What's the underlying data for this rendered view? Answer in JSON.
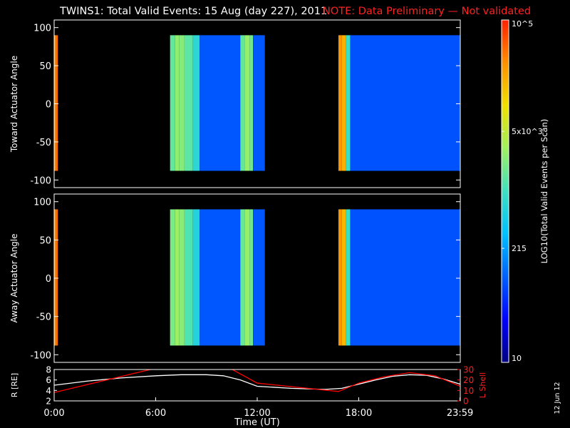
{
  "header": {
    "title": "TWINS1: Total Valid Events: 15 Aug (day 227), 2011",
    "note": "NOTE: Data Preliminary — Not validated"
  },
  "colorbar": {
    "label": "LOG10(Total Valid Events per Scan)",
    "tick_labels": [
      "10",
      "215",
      "5x10^3",
      "10^5"
    ],
    "tick_values": [
      10,
      215,
      5000,
      100000
    ],
    "scale": "log",
    "range": [
      10,
      100000
    ],
    "colormap": [
      "#000080",
      "#0000ff",
      "#0060ff",
      "#00c0ff",
      "#40e0c0",
      "#a0f060",
      "#f0e000",
      "#ff9000",
      "#ff2000"
    ]
  },
  "side_stamp": "12 Jun 12",
  "chart_data": [
    {
      "type": "heatmap",
      "name": "toward",
      "ylabel": "Toward Actuator Angle",
      "ylim": [
        -110,
        110
      ],
      "yticks": [
        100,
        50,
        0,
        -50,
        -100
      ],
      "xlim": [
        0,
        24
      ],
      "angle_range": [
        -88,
        90
      ],
      "segments": [
        {
          "start": 0.0,
          "end": 0.1,
          "value": 30000
        },
        {
          "start": 0.1,
          "end": 0.22,
          "value": 45000
        },
        {
          "start": 6.85,
          "end": 7.15,
          "value": 1500
        },
        {
          "start": 7.15,
          "end": 7.4,
          "value": 2600
        },
        {
          "start": 7.4,
          "end": 7.7,
          "value": 2300
        },
        {
          "start": 7.7,
          "end": 8.2,
          "value": 1400
        },
        {
          "start": 8.2,
          "end": 8.6,
          "value": 700
        },
        {
          "start": 8.6,
          "end": 11.0,
          "value": 90
        },
        {
          "start": 11.0,
          "end": 11.25,
          "value": 1500
        },
        {
          "start": 11.25,
          "end": 11.55,
          "value": 2800
        },
        {
          "start": 11.55,
          "end": 11.75,
          "value": 1800
        },
        {
          "start": 11.75,
          "end": 12.45,
          "value": 90
        },
        {
          "start": 16.8,
          "end": 17.0,
          "value": 30000
        },
        {
          "start": 17.0,
          "end": 17.25,
          "value": 20000
        },
        {
          "start": 17.25,
          "end": 17.5,
          "value": 900
        },
        {
          "start": 17.5,
          "end": 24.0,
          "value": 85
        }
      ]
    },
    {
      "type": "heatmap",
      "name": "away",
      "ylabel": "Away Actuator Angle",
      "ylim": [
        -110,
        110
      ],
      "yticks": [
        100,
        50,
        0,
        -50,
        -100
      ],
      "xlim": [
        0,
        24
      ],
      "angle_range": [
        -88,
        90
      ],
      "segments": [
        {
          "start": 0.0,
          "end": 0.1,
          "value": 30000
        },
        {
          "start": 0.1,
          "end": 0.22,
          "value": 45000
        },
        {
          "start": 6.85,
          "end": 7.15,
          "value": 2000
        },
        {
          "start": 7.15,
          "end": 7.4,
          "value": 3000
        },
        {
          "start": 7.4,
          "end": 7.7,
          "value": 2400
        },
        {
          "start": 7.7,
          "end": 8.2,
          "value": 1200
        },
        {
          "start": 8.2,
          "end": 8.6,
          "value": 600
        },
        {
          "start": 8.6,
          "end": 11.0,
          "value": 90
        },
        {
          "start": 11.0,
          "end": 11.25,
          "value": 1600
        },
        {
          "start": 11.25,
          "end": 11.55,
          "value": 2900
        },
        {
          "start": 11.55,
          "end": 11.75,
          "value": 1800
        },
        {
          "start": 11.75,
          "end": 12.45,
          "value": 90
        },
        {
          "start": 16.8,
          "end": 17.0,
          "value": 30000
        },
        {
          "start": 17.0,
          "end": 17.25,
          "value": 18000
        },
        {
          "start": 17.25,
          "end": 17.5,
          "value": 900
        },
        {
          "start": 17.5,
          "end": 24.0,
          "value": 85
        }
      ]
    },
    {
      "type": "line",
      "name": "orbit",
      "xlabel": "Time (UT)",
      "ylabel_left": "R [RE]",
      "ylabel_right": "L Shell",
      "ylim_left": [
        2,
        8
      ],
      "yticks_left": [
        8,
        6,
        4,
        2
      ],
      "ylim_right": [
        0,
        30
      ],
      "yticks_right": [
        30,
        20,
        10,
        0
      ],
      "xlim": [
        0,
        24
      ],
      "xticks": [
        0,
        6,
        12,
        18,
        23.983
      ],
      "xtick_labels": [
        "0:00",
        "6:00",
        "12:00",
        "18:00",
        "23:59"
      ],
      "series": [
        {
          "axis": "left",
          "color": "#ffffff",
          "x": [
            0,
            2,
            4,
            6,
            7.5,
            9,
            10,
            11,
            12,
            14,
            16,
            17,
            18,
            19,
            20,
            21,
            22,
            23,
            24
          ],
          "y": [
            5.0,
            5.8,
            6.4,
            6.8,
            7.0,
            7.0,
            6.8,
            6.0,
            4.8,
            4.4,
            4.2,
            4.4,
            5.2,
            6.0,
            6.7,
            7.0,
            6.9,
            6.2,
            5.2
          ]
        },
        {
          "axis": "right",
          "color": "#ff0000",
          "x": [
            0,
            6.2
          ],
          "y": [
            8,
            32
          ]
        },
        {
          "axis": "right",
          "color": "#ff0000",
          "x": [
            10.3,
            12.0,
            16.8,
            18.0,
            19.5,
            21.0,
            22.5,
            24
          ],
          "y": [
            32,
            17,
            9,
            17,
            23,
            27,
            24,
            14
          ]
        }
      ]
    }
  ]
}
